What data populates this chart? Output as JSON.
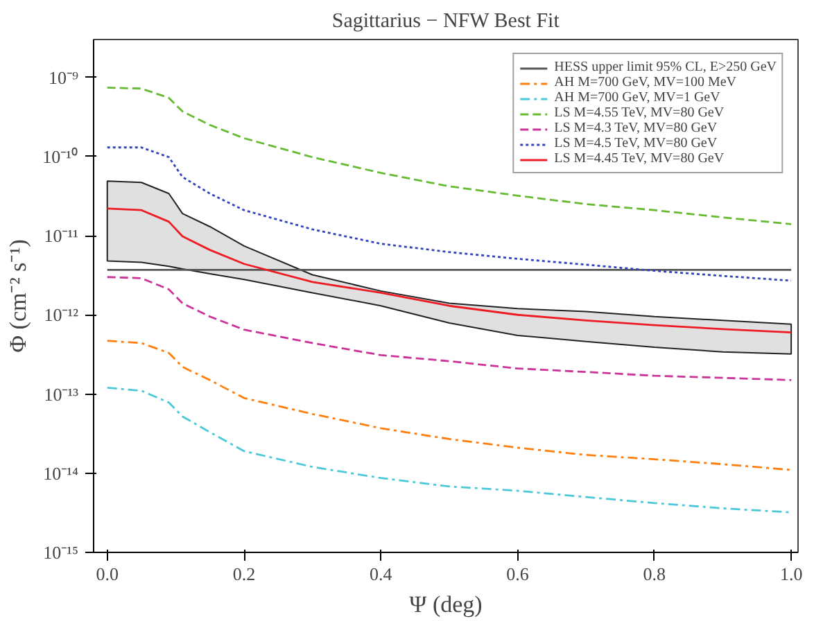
{
  "chart_data": {
    "type": "line",
    "title": "Sagittarius − NFW Best Fit",
    "xlabel": "Ψ (deg)",
    "ylabel": "Φ (cm⁻² s⁻¹)",
    "x": [
      0,
      0.05,
      0.09,
      0.11,
      0.15,
      0.2,
      0.3,
      0.4,
      0.5,
      0.6,
      0.7,
      0.8,
      0.9,
      1.0
    ],
    "xlim": [
      -0.02,
      1.01
    ],
    "ylim": [
      1e-15,
      3e-09
    ],
    "log": "y",
    "grid": false,
    "legend": "top right",
    "xticks": [
      {
        "value": 0,
        "label": "0.0"
      },
      {
        "value": 0.2,
        "label": "0.2"
      },
      {
        "value": 0.4,
        "label": "0.4"
      },
      {
        "value": 0.6,
        "label": "0.6"
      },
      {
        "value": 0.8,
        "label": "0.8"
      },
      {
        "value": 1.0,
        "label": "1.0"
      }
    ],
    "yticks": [
      {
        "value": 1e-15,
        "label": "10⁻¹⁵"
      },
      {
        "value": 1e-14,
        "label": "10⁻¹⁴"
      },
      {
        "value": 1e-13,
        "label": "10⁻¹³"
      },
      {
        "value": 1e-12,
        "label": "10⁻¹²"
      },
      {
        "value": 1e-11,
        "label": "10⁻¹¹"
      },
      {
        "value": 1e-10,
        "label": "10⁻¹⁰"
      },
      {
        "value": 1e-09,
        "label": "10⁻⁹"
      }
    ],
    "series": [
      {
        "name": "HESS upper limit 95% CL, E>250 GeV",
        "color": "#555555",
        "line_style": "solid",
        "x": [
          0,
          1.0
        ],
        "values": [
          3.7e-12,
          3.7e-12
        ]
      },
      {
        "name": "AH M=700 GeV, MV=100 MeV",
        "color": "#ff7f0e",
        "line_style": "dashdot",
        "values": [
          4.7e-13,
          4.4e-13,
          3.3e-13,
          2.2e-13,
          1.5e-13,
          8.9e-14,
          5.6e-14,
          3.7e-14,
          2.7e-14,
          2.1e-14,
          1.7e-14,
          1.5e-14,
          1.3e-14,
          1.1e-14
        ]
      },
      {
        "name": "AH M=700 GeV, MV=1 GeV",
        "color": "#4cc9d9",
        "line_style": "dashdot",
        "values": [
          1.2e-13,
          1.1e-13,
          7.8e-14,
          5.2e-14,
          3.3e-14,
          1.9e-14,
          1.2e-14,
          8.7e-15,
          6.8e-15,
          6e-15,
          5e-15,
          4.2e-15,
          3.6e-15,
          3.2e-15
        ]
      },
      {
        "name": "LS M=4.55 TeV, MV=80 GeV",
        "color": "#66bb33",
        "line_style": "dashed",
        "values": [
          7.4e-10,
          7.2e-10,
          5.5e-10,
          3.7e-10,
          2.5e-10,
          1.7e-10,
          9.8e-11,
          6.2e-11,
          4.2e-11,
          3.2e-11,
          2.5e-11,
          2.1e-11,
          1.7e-11,
          1.4e-11
        ]
      },
      {
        "name": "LS M=4.3 TeV, MV=80 GeV",
        "color": "#cc3399",
        "line_style": "dashed",
        "values": [
          3e-12,
          2.9e-12,
          2.1e-12,
          1.4e-12,
          9.5e-13,
          6.5e-13,
          4.4e-13,
          3.1e-13,
          2.6e-13,
          2.1e-13,
          1.9e-13,
          1.7e-13,
          1.6e-13,
          1.5e-13
        ]
      },
      {
        "name": "LS M=4.5 TeV, MV=80 GeV",
        "color": "#3344bb",
        "line_style": "dotted",
        "values": [
          1.3e-10,
          1.3e-10,
          9.8e-11,
          5.5e-11,
          3.4e-11,
          2.1e-11,
          1.2e-11,
          7.9e-12,
          6.2e-12,
          5.1e-12,
          4.3e-12,
          3.6e-12,
          3.1e-12,
          2.7e-12
        ]
      },
      {
        "name": "LS M=4.45 TeV, MV=80 GeV",
        "color": "#ee1c24",
        "line_style": "solid",
        "values": [
          2.2e-11,
          2.1e-11,
          1.5e-11,
          9.8e-12,
          6.6e-12,
          4.4e-12,
          2.6e-12,
          1.9e-12,
          1.3e-12,
          1e-12,
          8.5e-13,
          7.4e-13,
          6.6e-13,
          6e-13
        ],
        "lower": [
          4.8e-12,
          4.6e-12,
          4.1e-12,
          3.8e-12,
          3.3e-12,
          2.8e-12,
          1.9e-12,
          1.3e-12,
          7.9e-13,
          5.5e-13,
          4.6e-13,
          3.9e-13,
          3.4e-13,
          3.2e-13
        ],
        "upper": [
          4.9e-11,
          4.7e-11,
          3.4e-11,
          1.9e-11,
          1.3e-11,
          7.4e-12,
          3.2e-12,
          2e-12,
          1.4e-12,
          1.2e-12,
          1.1e-12,
          9.5e-13,
          8.5e-13,
          7.6e-13
        ]
      }
    ]
  }
}
